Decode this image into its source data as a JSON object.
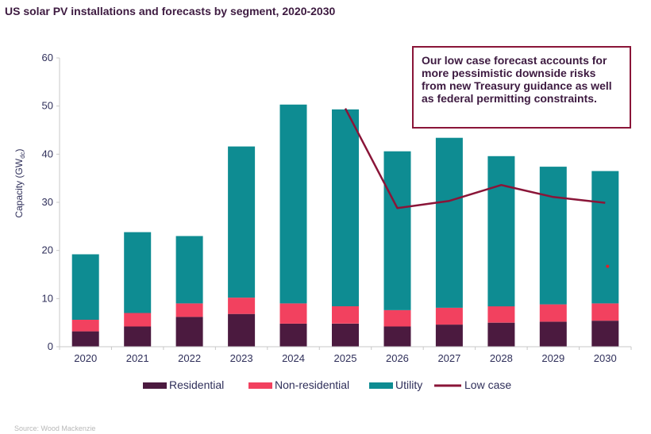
{
  "chart_data": {
    "type": "bar",
    "title": "US solar PV installations and forecasts  by segment, 2020-2030",
    "ylabel": "Capacity (GWdc)",
    "ylabel_main": "Capacity (GW",
    "ylabel_sub": "dc",
    "ylabel_close": ")",
    "xlabel": "",
    "ylim": [
      0,
      60
    ],
    "yticks": [
      "0",
      "10",
      "20",
      "30",
      "40",
      "50",
      "60"
    ],
    "categories": [
      "2020",
      "2021",
      "2022",
      "2023",
      "2024",
      "2025",
      "2026",
      "2027",
      "2028",
      "2029",
      "2030"
    ],
    "series": [
      {
        "name": "Residential",
        "color": "#4b1a3f",
        "values": [
          3.2,
          4.2,
          6.2,
          6.8,
          4.8,
          4.8,
          4.2,
          4.6,
          5.0,
          5.2,
          5.4
        ]
      },
      {
        "name": "Non-residential",
        "color": "#f2415f",
        "values": [
          2.4,
          2.8,
          2.8,
          3.4,
          4.2,
          3.6,
          3.4,
          3.5,
          3.4,
          3.6,
          3.6
        ]
      },
      {
        "name": "Utility",
        "color": "#0e8c92",
        "values": [
          13.6,
          16.8,
          14.0,
          31.4,
          41.3,
          40.9,
          33.0,
          35.3,
          31.2,
          28.6,
          27.5
        ]
      }
    ],
    "line": {
      "name": "Low case",
      "color": "#8a1538",
      "start_index": 5,
      "values": [
        49.5,
        28.8,
        30.3,
        33.6,
        31.1,
        29.9
      ]
    },
    "stray_point": {
      "index": 10,
      "value": 16.7,
      "color": "#e0202a"
    },
    "legend": "bottom",
    "annotation": "Our low case forecast accounts for more pessimistic  downside risks  from new Treasury guidance as well as federal permitting constraints.",
    "source": "Source: Wood Mackenzie"
  }
}
